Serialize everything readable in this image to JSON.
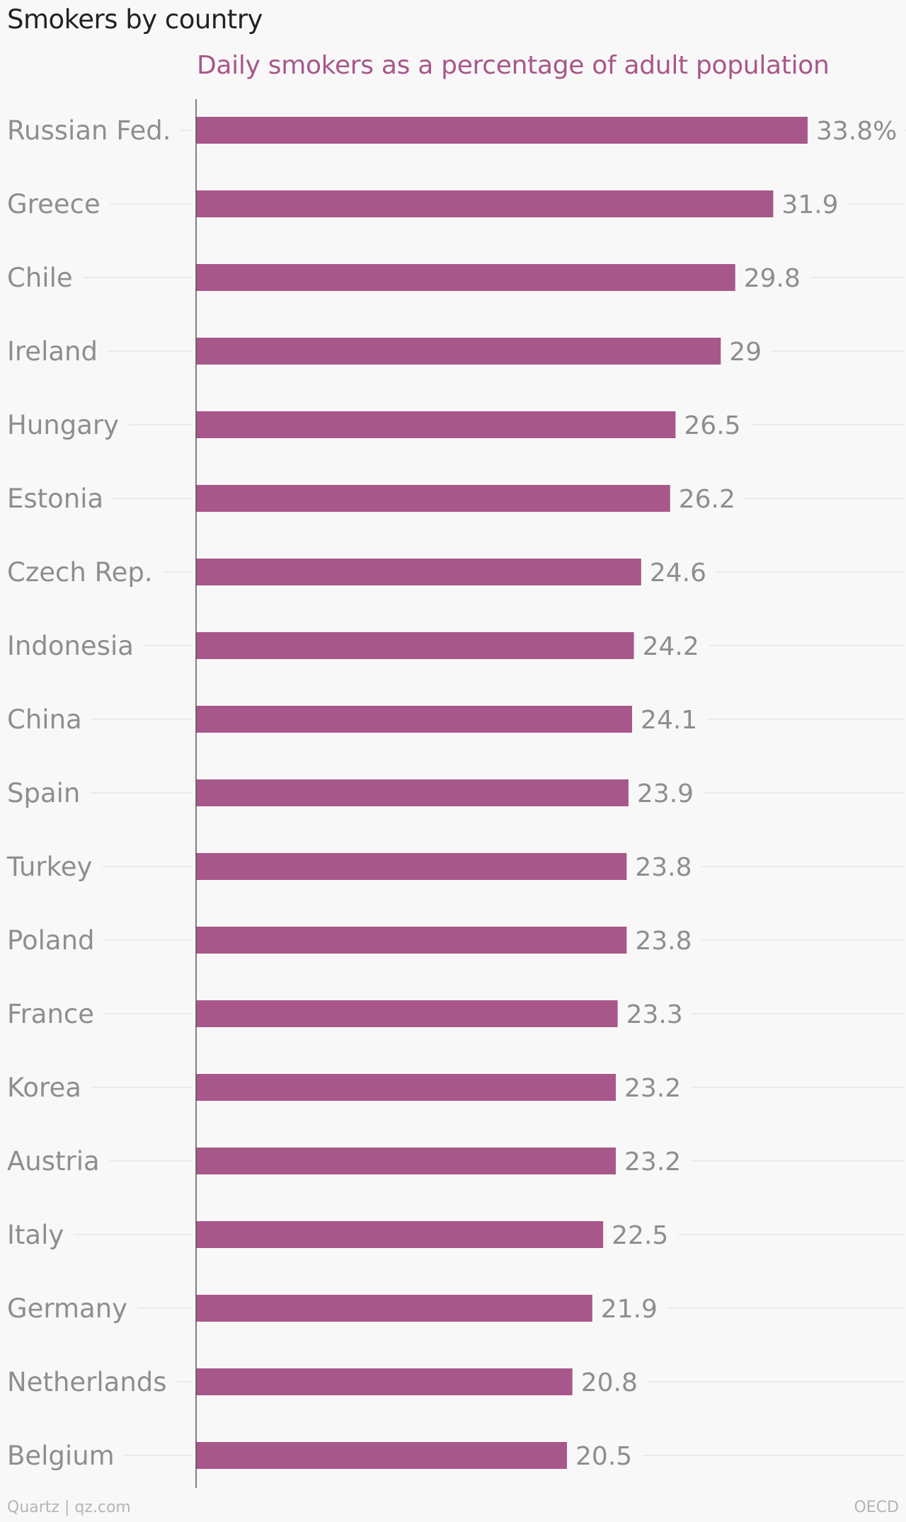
{
  "title": "Smokers by country",
  "subtitle": "Daily smokers as a percentage of adult population",
  "footer": {
    "credit": "Quartz | qz.com",
    "source": "OECD"
  },
  "colors": {
    "bar": "#a8578a",
    "title": "#222222",
    "label": "#8e8e8e",
    "grid": "#e6e6e6",
    "axis": "#555555"
  },
  "chart_data": {
    "type": "bar",
    "orientation": "horizontal",
    "categories": [
      "Russian Fed.",
      "Greece",
      "Chile",
      "Ireland",
      "Hungary",
      "Estonia",
      "Czech Rep.",
      "Indonesia",
      "China",
      "Spain",
      "Turkey",
      "Poland",
      "France",
      "Korea",
      "Austria",
      "Italy",
      "Germany",
      "Netherlands",
      "Belgium"
    ],
    "values": [
      33.8,
      31.9,
      29.8,
      29,
      26.5,
      26.2,
      24.6,
      24.2,
      24.1,
      23.9,
      23.8,
      23.8,
      23.3,
      23.2,
      23.2,
      22.5,
      21.9,
      20.8,
      20.5
    ],
    "value_labels": [
      "33.8%",
      "31.9",
      "29.8",
      "29",
      "26.5",
      "26.2",
      "24.6",
      "24.2",
      "24.1",
      "23.9",
      "23.8",
      "23.8",
      "23.3",
      "23.2",
      "23.2",
      "22.5",
      "21.9",
      "20.8",
      "20.5"
    ],
    "title": "Smokers by country",
    "subtitle": "Daily smokers as a percentage of adult population",
    "xlim": [
      0,
      33.8
    ],
    "grid": true
  }
}
